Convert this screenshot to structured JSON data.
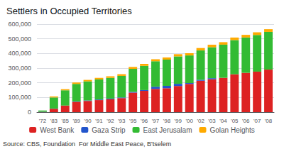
{
  "chart_data": {
    "type": "bar",
    "title": "Settlers in Occupied Territories",
    "stacked": true,
    "grid": true,
    "legend": "bottom",
    "annotations": [
      "Source: CBS, Foundation  For Middle East Peace, B'tselem"
    ],
    "categories": [
      "'72",
      "'83",
      "'85",
      "'89",
      "'90",
      "'91",
      "'92",
      "'93",
      "'95",
      "'96",
      "'97",
      "'98",
      "'99",
      "'00",
      "'02",
      "'03",
      "'04",
      "'05",
      "'06",
      "'07",
      "'08"
    ],
    "series": [
      {
        "name": "West Bank",
        "color": "#dd2222",
        "values": [
          1500,
          22800,
          44200,
          69800,
          76200,
          81900,
          87500,
          95500,
          133000,
          145000,
          158000,
          163000,
          178000,
          192000,
          214000,
          224000,
          234000,
          258000,
          268000,
          276000,
          290000
        ]
      },
      {
        "name": "Gaza Strip",
        "color": "#2255cc",
        "values": [
          700,
          900,
          1000,
          3000,
          3500,
          4200,
          4800,
          4500,
          5000,
          5500,
          15000,
          16000,
          15000,
          6500,
          6500,
          7500,
          0,
          0,
          0,
          0,
          0
        ]
      },
      {
        "name": "East Jerusalam",
        "color": "#33bb33",
        "values": [
          8600,
          76200,
          103900,
          120000,
          130000,
          137000,
          141000,
          147000,
          157000,
          165000,
          174000,
          179000,
          187000,
          188000,
          200000,
          211000,
          226000,
          233000,
          241000,
          250000,
          257000
        ]
      },
      {
        "name": "Golan Heights",
        "color": "#ffaa00",
        "values": [
          0,
          6800,
          7500,
          8700,
          10000,
          10500,
          11000,
          11500,
          13000,
          13500,
          13500,
          14500,
          15000,
          15000,
          16500,
          17000,
          17000,
          17500,
          17800,
          18200,
          18500
        ]
      }
    ],
    "ylim": [
      0,
      600000
    ],
    "yticks": [
      0,
      {
        "value": 100000,
        "label": "100,000"
      },
      {
        "value": 200000,
        "label": "200,000"
      },
      {
        "value": 300000,
        "label": "300,000"
      },
      {
        "value": 400000,
        "label": "400,000"
      },
      {
        "value": 500000,
        "label": "500,000"
      },
      {
        "value": 600000,
        "label": "600,000"
      }
    ]
  }
}
